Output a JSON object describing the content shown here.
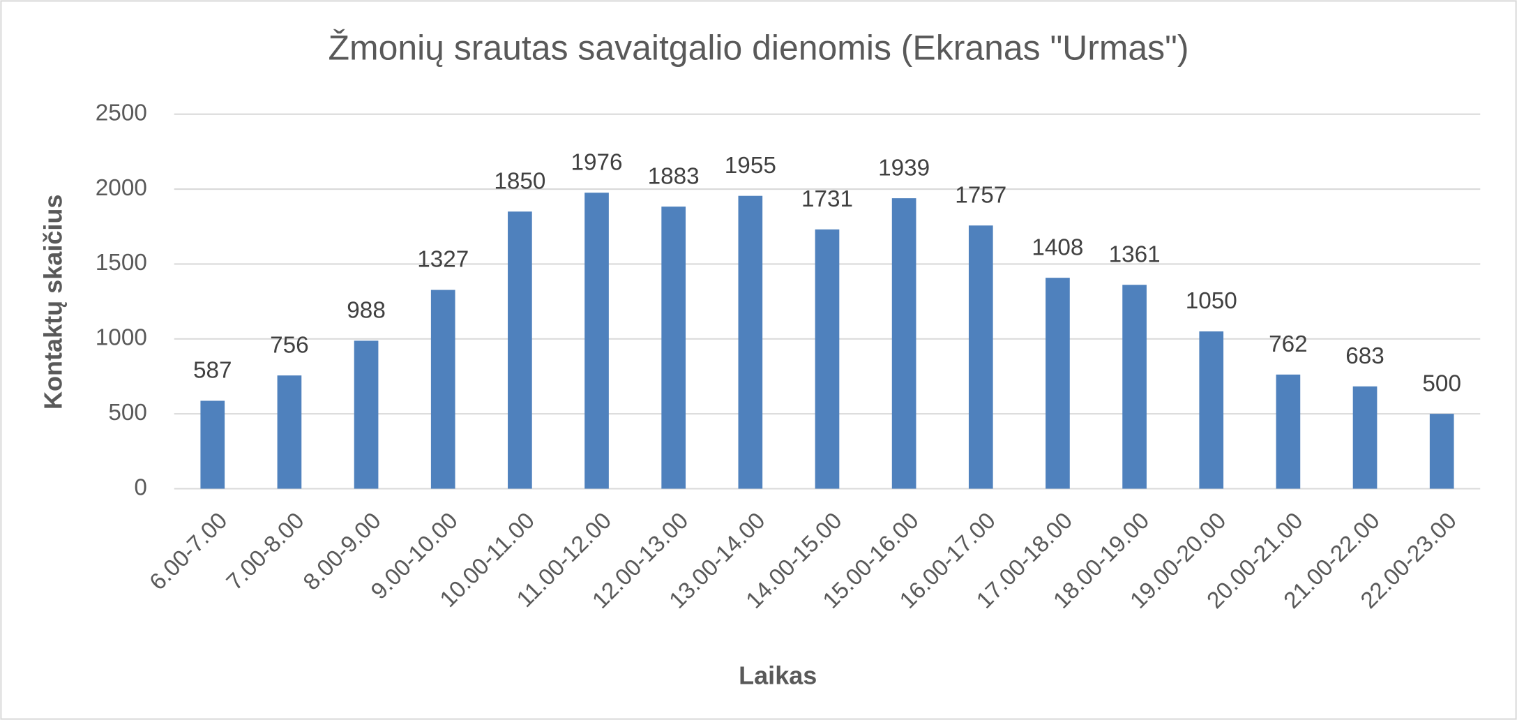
{
  "chart_data": {
    "type": "bar",
    "title": "Žmonių srautas savaitgalio dienomis (Ekranas \"Urmas\")",
    "x_label": "Laikas",
    "y_label": "Kontaktų skaičius",
    "categories": [
      "6.00-7.00",
      "7.00-8.00",
      "8.00-9.00",
      "9.00-10.00",
      "10.00-11.00",
      "11.00-12.00",
      "12.00-13.00",
      "13.00-14.00",
      "14.00-15.00",
      "15.00-16.00",
      "16.00-17.00",
      "17.00-18.00",
      "18.00-19.00",
      "19.00-20.00",
      "20.00-21.00",
      "21.00-22.00",
      "22.00-23.00"
    ],
    "values": [
      587,
      756,
      988,
      1327,
      1850,
      1976,
      1883,
      1955,
      1731,
      1939,
      1757,
      1408,
      1361,
      1050,
      762,
      683,
      500
    ],
    "color": "#4f81bd",
    "ylim": [
      0,
      2500
    ],
    "yticks": [
      0,
      500,
      1000,
      1500,
      2000,
      2500
    ],
    "grid": true
  }
}
